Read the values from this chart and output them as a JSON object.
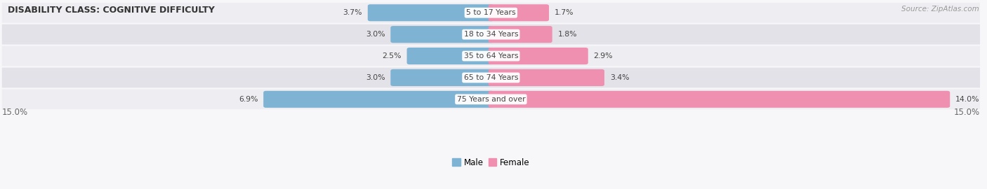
{
  "title": "DISABILITY CLASS: COGNITIVE DIFFICULTY",
  "source": "Source: ZipAtlas.com",
  "categories": [
    "5 to 17 Years",
    "18 to 34 Years",
    "35 to 64 Years",
    "65 to 74 Years",
    "75 Years and over"
  ],
  "male_values": [
    3.7,
    3.0,
    2.5,
    3.0,
    6.9
  ],
  "female_values": [
    1.7,
    1.8,
    2.9,
    3.4,
    14.0
  ],
  "max_val": 15.0,
  "male_color": "#7fb3d3",
  "female_color": "#f090b0",
  "row_bg_light": "#eeeef2",
  "row_bg_dark": "#e2e2e8",
  "fig_bg": "#f7f7fa",
  "label_color": "#444444",
  "title_color": "#333333",
  "source_color": "#999999",
  "axis_label_color": "#666666",
  "legend_labels": [
    "Male",
    "Female"
  ],
  "figsize": [
    14.06,
    2.7
  ],
  "dpi": 100
}
